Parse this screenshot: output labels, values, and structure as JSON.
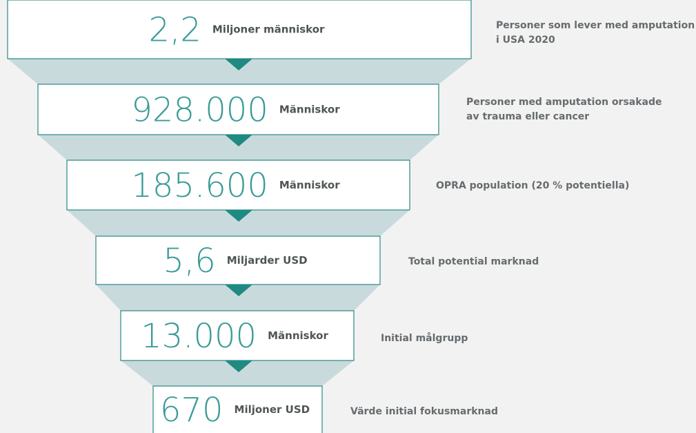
{
  "levels": [
    {
      "value": "2,2",
      "unit": "Miljoner människor",
      "description": [
        "Personer som lever med amputation",
        "i USA 2020"
      ]
    },
    {
      "value": "928.000",
      "unit": "Människor",
      "description": [
        "Personer med amputation orsakade",
        "av trauma eller cancer"
      ]
    },
    {
      "value": "185.600",
      "unit": "Människor",
      "description": [
        "OPRA population (20 % potentiella)"
      ]
    },
    {
      "value": "5,6",
      "unit": "Miljarder USD",
      "description": [
        "Total potential marknad"
      ]
    },
    {
      "value": "13.000",
      "unit": "Människor",
      "description": [
        "Initial målgrupp"
      ]
    },
    {
      "value": "670",
      "unit": "Miljoner USD",
      "description": [
        "Värde initial fokusmarknad"
      ]
    }
  ]
}
